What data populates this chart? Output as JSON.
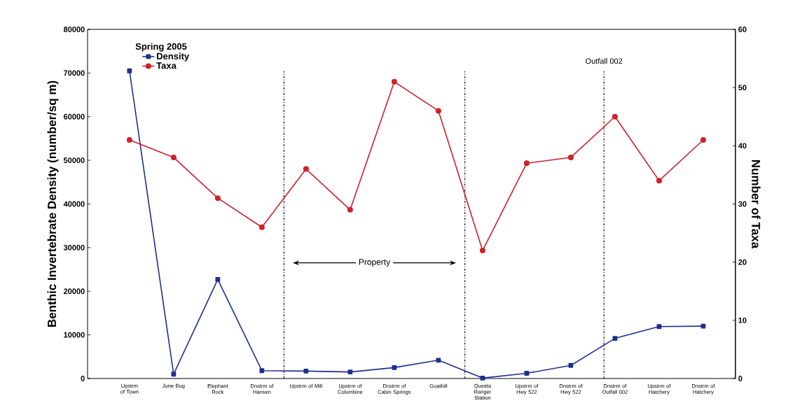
{
  "chart_data": {
    "type": "line",
    "categories": [
      "Upstrm of Town",
      "June Bug",
      "Elephant Rock",
      "Dnstrm of Hansen",
      "Upstrm of Mill",
      "Upstrm of Columbine",
      "Dnstrm of Cabin Springs",
      "Goathill",
      "Questa Ranger Station",
      "Upstrm of Hwy 522",
      "Dnstrm of Hwy 522",
      "Dnstrm of Outfall 002",
      "Upstrm of Hatchery",
      "Dnstrm of Hatchery"
    ],
    "series": [
      {
        "name": "Density",
        "color": "#1f2f8f",
        "marker": "square",
        "values": [
          70500,
          1000,
          22700,
          1800,
          1700,
          1500,
          2500,
          4200,
          100,
          1200,
          3000,
          9200,
          11900,
          12000
        ]
      },
      {
        "name": "Taxa",
        "color": "#d0202a",
        "marker": "circle",
        "axis": "y2",
        "values": [
          41,
          38,
          31,
          26,
          36,
          29,
          51,
          46,
          22,
          37,
          38,
          45,
          34,
          41
        ]
      }
    ],
    "ylabel": "Benthic Invertebrate Density (number/sq m)",
    "y2label": "Number of Taxa",
    "legend_title": "Spring 2005",
    "legend": "top left",
    "ylim": [
      0,
      80000
    ],
    "yticks": [
      0,
      10000,
      20000,
      30000,
      40000,
      50000,
      60000,
      70000,
      80000
    ],
    "y2lim": [
      0,
      60
    ],
    "y2ticks": [
      0,
      10,
      20,
      30,
      40,
      50,
      60
    ],
    "grid": false,
    "annotations": [
      "Property",
      "Outfall 002"
    ]
  }
}
